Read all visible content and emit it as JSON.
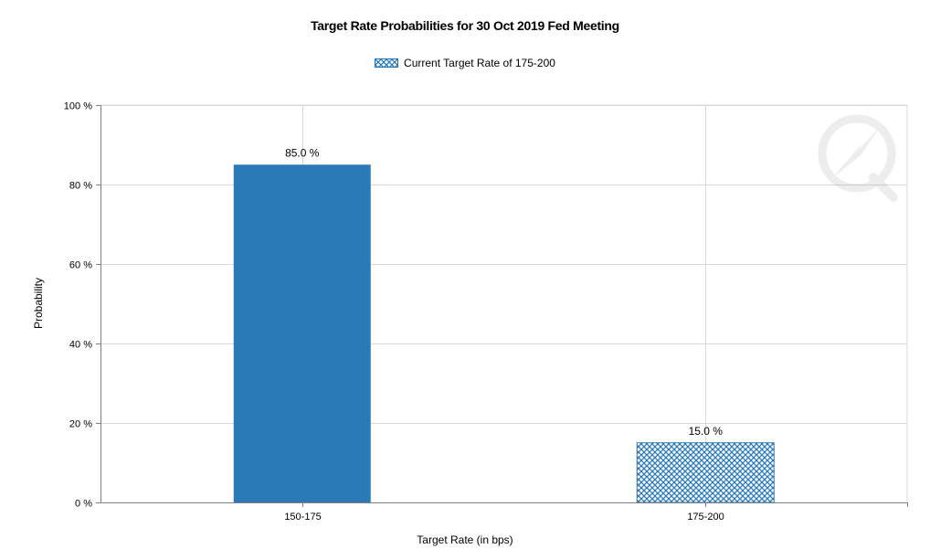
{
  "title": "Target Rate Probabilities for 30 Oct 2019 Fed Meeting",
  "legend_label": "Current Target Rate of 175-200",
  "chart_data": {
    "type": "bar",
    "title": "Target Rate Probabilities for 30 Oct 2019 Fed Meeting",
    "xlabel": "Target Rate (in bps)",
    "ylabel": "Probability",
    "categories": [
      "150-175",
      "175-200"
    ],
    "values": [
      85.0,
      15.0
    ],
    "data_labels": [
      "85.0 %",
      "15.0 %"
    ],
    "y_ticks": [
      "0 %",
      "20 %",
      "40 %",
      "60 %",
      "80 %",
      "100 %"
    ],
    "ylim": [
      0,
      100
    ],
    "grid": true,
    "legend_position": "top-center",
    "series": [
      {
        "name": "Current Target Rate of 175-200",
        "category": "175-200",
        "style": "crosshatch"
      }
    ],
    "colors": {
      "bar": "#2a7ab8",
      "hatch_bg": "#ffffff",
      "hatch_line": "#2a7ab8",
      "grid": "#d9d9d9",
      "axis": "#808080"
    }
  }
}
